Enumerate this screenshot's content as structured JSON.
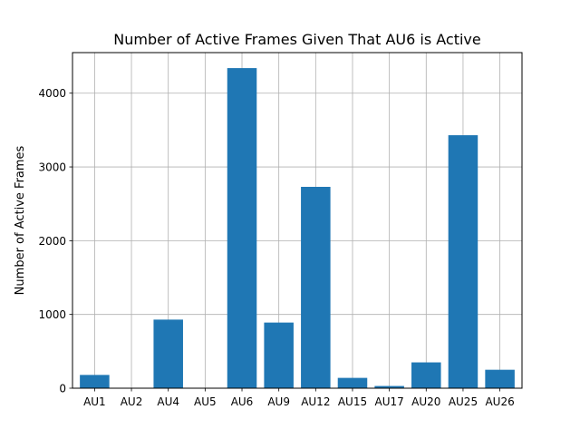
{
  "chart_data": {
    "type": "bar",
    "title": "Number of Active Frames Given That AU6 is Active",
    "xlabel": "",
    "ylabel": "Number of Active Frames",
    "categories": [
      "AU1",
      "AU2",
      "AU4",
      "AU5",
      "AU6",
      "AU9",
      "AU12",
      "AU15",
      "AU17",
      "AU20",
      "AU25",
      "AU26"
    ],
    "values": [
      180,
      0,
      930,
      0,
      4340,
      890,
      2730,
      140,
      30,
      350,
      3430,
      250
    ],
    "ylim": [
      0,
      4550
    ],
    "yticks": [
      0,
      1000,
      2000,
      3000,
      4000
    ],
    "grid": true,
    "bar_color": "#1f77b4"
  }
}
